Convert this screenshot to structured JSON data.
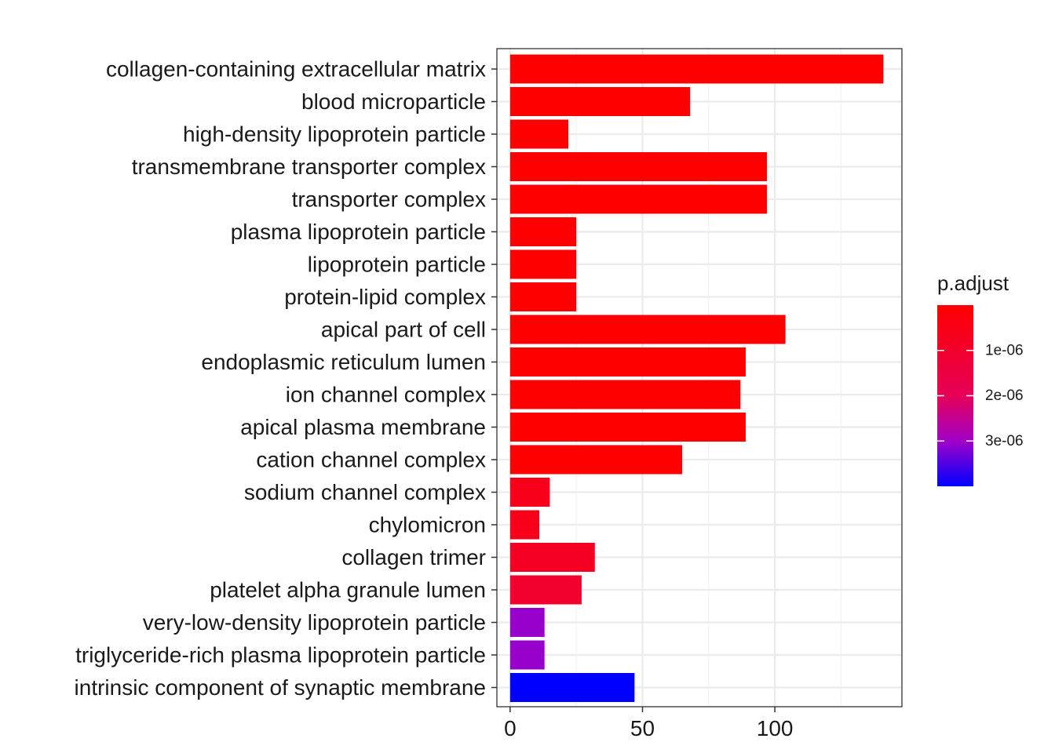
{
  "chart_data": {
    "type": "bar",
    "orientation": "horizontal",
    "categories": [
      "collagen-containing extracellular matrix",
      "blood microparticle",
      "high-density lipoprotein particle",
      "transmembrane transporter complex",
      "transporter complex",
      "plasma lipoprotein particle",
      "lipoprotein particle",
      "protein-lipid complex",
      "apical part of cell",
      "endoplasmic reticulum lumen",
      "ion channel complex",
      "apical plasma membrane",
      "cation channel complex",
      "sodium channel complex",
      "chylomicron",
      "collagen trimer",
      "platelet alpha granule lumen",
      "very-low-density lipoprotein particle",
      "triglyceride-rich plasma lipoprotein particle",
      "intrinsic component of synaptic membrane"
    ],
    "values": [
      141,
      68,
      22,
      97,
      97,
      25,
      25,
      25,
      104,
      89,
      87,
      89,
      65,
      15,
      11,
      32,
      27,
      13,
      13,
      47
    ],
    "p_adjust": [
      1e-08,
      1e-08,
      1e-08,
      1e-08,
      1e-08,
      1e-08,
      1e-08,
      1e-08,
      1e-08,
      1e-08,
      1e-08,
      1e-08,
      1e-08,
      6e-07,
      6e-07,
      8e-07,
      1.05e-06,
      3.05e-06,
      3.05e-06,
      4e-06
    ],
    "xlim": [
      -5,
      148
    ],
    "x_ticks": [
      0,
      50,
      100
    ],
    "x_tick_labels": [
      "0",
      "50",
      "100"
    ],
    "xlabel": "",
    "ylabel": "",
    "title": "",
    "grid": true,
    "legend": {
      "title": "p.adjust",
      "position": "right",
      "range": [
        0,
        4e-06
      ],
      "ticks": [
        1e-06,
        2e-06,
        3e-06
      ],
      "tick_labels": [
        "1e-06",
        "2e-06",
        "3e-06"
      ],
      "color_low_padjust": "#ff0000",
      "color_high_padjust": "#0000ff"
    }
  }
}
